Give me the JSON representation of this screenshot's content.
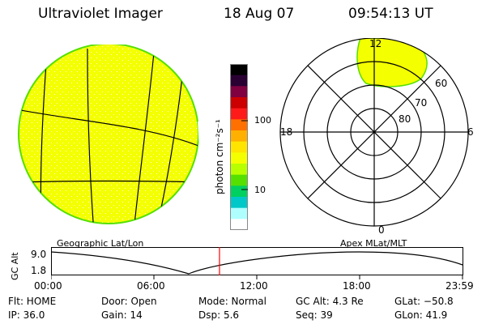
{
  "header": {
    "instrument": "Ultraviolet Imager",
    "date": "18 Aug 07",
    "time": "09:54:13 UT"
  },
  "colorbar": {
    "unit_label": "photon cm⁻²s⁻¹",
    "tick_labels": [
      "100",
      "10"
    ],
    "colors": [
      "#000000",
      "#2a0033",
      "#800040",
      "#cc0000",
      "#ff1a1a",
      "#ff7000",
      "#ffb000",
      "#ffe500",
      "#f4ff00",
      "#b8ff00",
      "#55e000",
      "#00d060",
      "#00c8c8",
      "#b0ffff",
      "#ffffff"
    ]
  },
  "left_panel": {
    "caption": "Geographic Lat/Lon",
    "fill_color": "#f4ff00",
    "edge_color": "#55e000"
  },
  "right_panel": {
    "caption": "Apex MLat/MLT",
    "mlt_labels": {
      "top": "12",
      "left": "18",
      "right": "6",
      "bottom": "0"
    },
    "mlat_labels": [
      "60",
      "70",
      "80"
    ]
  },
  "altitude_plot": {
    "ylabel": "GC Alt",
    "ytick_labels": [
      "9.0",
      "1.8"
    ],
    "xtick_labels": [
      "00:00",
      "06:00",
      "12:00",
      "18:00",
      "23:59"
    ],
    "marker_color": "#ff0000"
  },
  "status": {
    "flt": "Flt: HOME",
    "ip": "IP: 36.0",
    "door": "Door: Open",
    "gain": "Gain: 14",
    "mode": "Mode: Normal",
    "dsp": "Dsp:    5.6",
    "gcalt": "GC Alt: 4.3 Re",
    "seq": "Seq: 39",
    "glat": "GLat: −50.8",
    "glon": "GLon:  41.9"
  }
}
